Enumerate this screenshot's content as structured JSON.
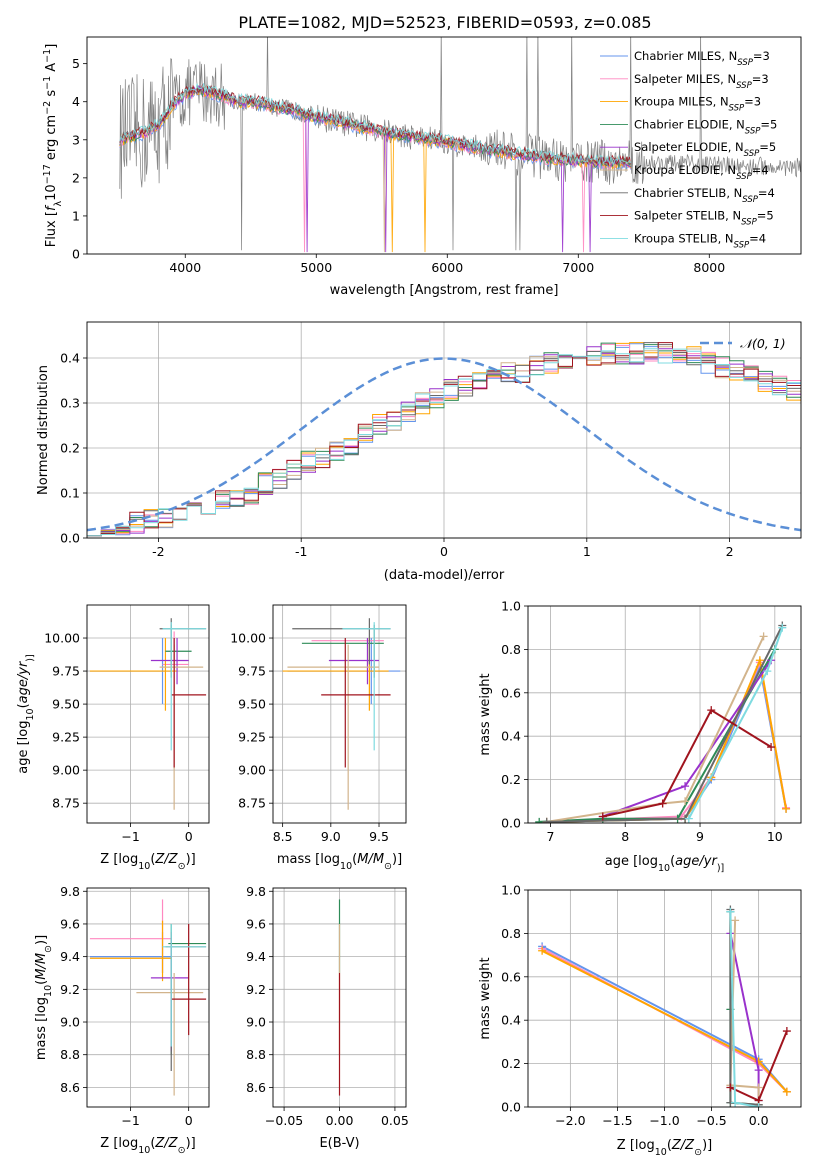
{
  "figure": {
    "title": "PLATE=1082, MJD=52523, FIBERID=0593, z=0.085"
  },
  "colors": {
    "data": "#808080",
    "models": [
      "#6495ed",
      "#ff88c0",
      "#ffa500",
      "#2e8b57",
      "#9932cc",
      "#d2b48c",
      "#696969",
      "#a0141e",
      "#7fdbe0"
    ],
    "fitline": "#1f1f1f",
    "gauss": "#5b8fd6"
  },
  "chart_data": [
    {
      "id": "spectrum",
      "type": "line",
      "xlabel": "wavelength [Angstrom, rest frame]",
      "ylabel_parts": [
        "Flux [",
        "f",
        "λ",
        "10",
        "−17",
        " erg cm",
        "−2",
        " s",
        "−1",
        " A",
        "−1",
        "]"
      ],
      "xlim": [
        3250,
        8700
      ],
      "ylim": [
        0,
        5.7
      ],
      "xticks": [
        4000,
        5000,
        6000,
        7000,
        8000
      ],
      "yticks": [
        0,
        1,
        2,
        3,
        4,
        5
      ],
      "grid": false,
      "legend_position": "top-right",
      "legend": [
        {
          "name": "Chabrier MILES",
          "nssp": "3"
        },
        {
          "name": "Salpeter MILES",
          "nssp": "3"
        },
        {
          "name": "Kroupa MILES",
          "nssp": "3"
        },
        {
          "name": "Chabrier ELODIE",
          "nssp": "5"
        },
        {
          "name": "Salpeter ELODIE",
          "nssp": "5"
        },
        {
          "name": "Kroupa ELODIE",
          "nssp": "4"
        },
        {
          "name": "Chabrier STELIB",
          "nssp": "4"
        },
        {
          "name": "Salpeter STELIB",
          "nssp": "5"
        },
        {
          "name": "Kroupa STELIB",
          "nssp": "4"
        }
      ],
      "nssp_label": "N",
      "nssp_sub": "SSP",
      "continuum": {
        "x": [
          3500,
          3600,
          3700,
          3800,
          3900,
          4000,
          4100,
          4200,
          4300,
          4400,
          4500,
          4600,
          4700,
          4800,
          4900,
          5000,
          5200,
          5400,
          5600,
          5800,
          6000,
          6200,
          6400,
          6600,
          6800,
          7000,
          7200,
          7400
        ],
        "y": [
          3.0,
          3.1,
          3.2,
          3.4,
          3.9,
          4.2,
          4.3,
          4.25,
          4.15,
          4.0,
          4.0,
          3.95,
          3.85,
          3.8,
          3.7,
          3.6,
          3.45,
          3.3,
          3.15,
          3.05,
          2.95,
          2.8,
          2.7,
          2.6,
          2.5,
          2.45,
          2.4,
          2.4
        ]
      }
    },
    {
      "id": "residuals",
      "type": "step",
      "xlabel": "(data-model)/error",
      "ylabel": "Normed distribution",
      "xlim": [
        -2.5,
        2.5
      ],
      "ylim": [
        0,
        0.48
      ],
      "xticks": [
        -2,
        -1,
        0,
        1,
        2
      ],
      "yticks": [
        0.0,
        0.1,
        0.2,
        0.3,
        0.4
      ],
      "ytick_labels": [
        "0.0",
        "0.1",
        "0.2",
        "0.3",
        "0.4"
      ],
      "grid": true,
      "legend_position": "top-right",
      "legend_label": "𝒩(0, 1)",
      "bin_width": 0.1,
      "bin_start": -2.5,
      "base_hist": [
        0.02,
        0.025,
        0.03,
        0.035,
        0.04,
        0.045,
        0.05,
        0.055,
        0.06,
        0.08,
        0.09,
        0.1,
        0.12,
        0.13,
        0.15,
        0.17,
        0.18,
        0.19,
        0.21,
        0.23,
        0.25,
        0.26,
        0.28,
        0.3,
        0.31,
        0.33,
        0.34,
        0.35,
        0.36,
        0.37,
        0.37,
        0.38,
        0.39,
        0.39,
        0.4,
        0.4,
        0.41,
        0.41,
        0.41,
        0.41,
        0.41,
        0.4,
        0.4,
        0.39,
        0.38,
        0.37,
        0.36,
        0.35,
        0.34,
        0.33,
        0.32,
        0.3,
        0.28,
        0.26,
        0.24,
        0.22,
        0.21,
        0.2,
        0.19,
        0.18,
        0.17,
        0.15,
        0.14,
        0.12,
        0.11,
        0.1,
        0.09,
        0.08,
        0.07,
        0.07,
        0.06,
        0.06,
        0.05,
        0.05,
        0.045,
        0.04,
        0.035,
        0.03,
        0.03,
        0.03,
        0.025,
        0.025,
        0.025,
        0.02,
        0.02,
        0.02,
        0.02,
        0.02,
        0.02,
        0.02,
        0.02,
        0.02,
        0.02,
        0.02,
        0.02,
        0.02,
        0.02,
        0.02,
        0.02,
        0.02
      ]
    },
    {
      "id": "age-vs-Z",
      "type": "errorbar",
      "xlabel_parts": [
        "Z [log",
        "10",
        "(",
        "Z/Z",
        "⊙",
        ")]"
      ],
      "ylabel_parts": [
        "age  [log",
        "10",
        "(",
        "age/yr",
        ")]"
      ],
      "xlim": [
        -1.75,
        0.35
      ],
      "ylim": [
        8.6,
        10.25
      ],
      "xticks": [
        -1,
        0
      ],
      "xtick_labels": [
        "−1",
        "0"
      ],
      "yticks": [
        8.75,
        9.0,
        9.25,
        9.5,
        9.75,
        10.0
      ],
      "ytick_labels": [
        "8.75",
        "9.00",
        "9.25",
        "9.50",
        "9.75",
        "10.00"
      ],
      "grid": true,
      "points": [
        {
          "x": -0.45,
          "xlo": -1.7,
          "xhi": -0.3,
          "y": 9.75,
          "ylo": 9.5,
          "yhi": 10.0
        },
        {
          "x": -0.25,
          "xlo": -0.45,
          "xhi": 0.0,
          "y": 9.8,
          "ylo": 9.6,
          "yhi": 10.05
        },
        {
          "x": -0.4,
          "xlo": -1.7,
          "xhi": -0.2,
          "y": 9.75,
          "ylo": 9.45,
          "yhi": 10.0
        },
        {
          "x": -0.3,
          "xlo": -0.4,
          "xhi": 0.05,
          "y": 9.9,
          "ylo": 9.7,
          "yhi": 10.1
        },
        {
          "x": -0.2,
          "xlo": -0.65,
          "xhi": 0.0,
          "y": 9.83,
          "ylo": 9.65,
          "yhi": 10.0
        },
        {
          "x": -0.25,
          "xlo": -0.5,
          "xhi": 0.25,
          "y": 9.78,
          "ylo": 8.7,
          "yhi": 9.95
        },
        {
          "x": -0.3,
          "xlo": -0.5,
          "xhi": 0.3,
          "y": 10.07,
          "ylo": 9.8,
          "yhi": 10.15
        },
        {
          "x": -0.25,
          "xlo": -0.3,
          "xhi": 0.3,
          "y": 9.57,
          "ylo": 9.02,
          "yhi": 10.0
        },
        {
          "x": -0.3,
          "xlo": -0.45,
          "xhi": 0.3,
          "y": 10.07,
          "ylo": 9.15,
          "yhi": 10.12
        }
      ]
    },
    {
      "id": "age-vs-mass",
      "type": "errorbar",
      "xlabel_parts": [
        "mass [log",
        "10",
        "(",
        "M/M",
        "⊙",
        ")]"
      ],
      "xlim": [
        8.4,
        9.78
      ],
      "ylim": [
        8.6,
        10.25
      ],
      "xticks": [
        8.5,
        9.0,
        9.5
      ],
      "xtick_labels": [
        "8.5",
        "9.0",
        "9.5"
      ],
      "yticks": [
        8.75,
        9.0,
        9.25,
        9.5,
        9.75,
        10.0
      ],
      "ytick_labels": [
        "8.75",
        "9.00",
        "9.25",
        "9.50",
        "9.75",
        "10.00"
      ],
      "grid": true,
      "points": [
        {
          "x": 9.42,
          "xlo": 8.55,
          "xhi": 9.72,
          "y": 9.75,
          "ylo": 9.5,
          "yhi": 10.0
        },
        {
          "x": 9.45,
          "xlo": 8.8,
          "xhi": 9.55,
          "y": 9.98,
          "ylo": 9.7,
          "yhi": 10.1
        },
        {
          "x": 9.4,
          "xlo": 8.5,
          "xhi": 9.6,
          "y": 9.75,
          "ylo": 9.45,
          "yhi": 10.0
        },
        {
          "x": 9.45,
          "xlo": 8.7,
          "xhi": 9.55,
          "y": 9.96,
          "ylo": 9.7,
          "yhi": 10.1
        },
        {
          "x": 9.38,
          "xlo": 8.98,
          "xhi": 9.5,
          "y": 9.83,
          "ylo": 9.65,
          "yhi": 10.0
        },
        {
          "x": 9.18,
          "xlo": 8.55,
          "xhi": 9.5,
          "y": 9.78,
          "ylo": 8.7,
          "yhi": 9.95
        },
        {
          "x": 9.4,
          "xlo": 8.6,
          "xhi": 9.62,
          "y": 10.07,
          "ylo": 9.8,
          "yhi": 10.15
        },
        {
          "x": 9.15,
          "xlo": 8.9,
          "xhi": 9.62,
          "y": 9.57,
          "ylo": 9.02,
          "yhi": 10.0
        },
        {
          "x": 9.45,
          "xlo": 9.12,
          "xhi": 9.62,
          "y": 10.07,
          "ylo": 9.15,
          "yhi": 10.12
        }
      ]
    },
    {
      "id": "massweight-vs-age",
      "type": "line",
      "xlabel_parts": [
        "age  [log",
        "10",
        "(",
        "age/yr",
        ")]"
      ],
      "ylabel": "mass weight",
      "xlim": [
        6.7,
        10.35
      ],
      "ylim": [
        0,
        1.0
      ],
      "xticks": [
        7,
        8,
        9,
        10
      ],
      "yticks": [
        0.0,
        0.2,
        0.4,
        0.6,
        0.8,
        1.0
      ],
      "ytick_labels": [
        "0.0",
        "0.2",
        "0.4",
        "0.6",
        "0.8",
        "1.0"
      ],
      "grid": true,
      "series": [
        {
          "x": [
            6.95,
            8.8,
            9.15,
            9.8,
            10.15
          ],
          "y": [
            0.005,
            0.02,
            0.2,
            0.72,
            0.065
          ]
        },
        {
          "x": [
            6.95,
            8.75,
            9.15,
            9.8,
            10.15
          ],
          "y": [
            0.005,
            0.03,
            0.21,
            0.74,
            0.07
          ]
        },
        {
          "x": [
            6.95,
            8.8,
            9.15,
            9.8,
            10.15
          ],
          "y": [
            0.005,
            0.02,
            0.21,
            0.75,
            0.065
          ]
        },
        {
          "x": [
            6.85,
            7.7,
            8.7,
            10.0
          ],
          "y": [
            0.005,
            0.02,
            0.02,
            0.8
          ]
        },
        {
          "x": [
            7.7,
            8.8,
            9.95
          ],
          "y": [
            0.03,
            0.17,
            0.75
          ]
        },
        {
          "x": [
            6.95,
            8.5,
            8.8,
            9.85
          ],
          "y": [
            0.005,
            0.09,
            0.1,
            0.86
          ]
        },
        {
          "x": [
            6.95,
            8.8,
            10.1
          ],
          "y": [
            0.005,
            0.02,
            0.91
          ]
        },
        {
          "x": [
            7.7,
            8.5,
            9.15,
            9.95
          ],
          "y": [
            0.03,
            0.09,
            0.52,
            0.35
          ]
        },
        {
          "x": [
            8.85,
            9.9,
            10.1
          ],
          "y": [
            0.02,
            0.7,
            0.9
          ]
        }
      ]
    },
    {
      "id": "mass-vs-Z",
      "type": "errorbar",
      "xlabel_parts": [
        "Z [log",
        "10",
        "(",
        "Z/Z",
        "⊙",
        ")]"
      ],
      "ylabel_parts": [
        "mass [log",
        "10",
        "(",
        "M/M",
        "⊙",
        ")]"
      ],
      "xlim": [
        -1.75,
        0.35
      ],
      "ylim": [
        8.48,
        9.82
      ],
      "xticks": [
        -1,
        0
      ],
      "xtick_labels": [
        "−1",
        "0"
      ],
      "yticks": [
        8.6,
        8.8,
        9.0,
        9.2,
        9.4,
        9.6,
        9.8
      ],
      "ytick_labels": [
        "8.6",
        "8.8",
        "9.0",
        "9.2",
        "9.4",
        "9.6",
        "9.8"
      ],
      "grid": true,
      "points": [
        {
          "x": -0.45,
          "xlo": -1.7,
          "xhi": -0.3,
          "y": 9.4,
          "ylo": 9.3,
          "yhi": 9.55
        },
        {
          "x": -0.45,
          "xlo": -1.7,
          "xhi": -0.3,
          "y": 9.51,
          "ylo": 9.3,
          "yhi": 9.75
        },
        {
          "x": -0.45,
          "xlo": -1.7,
          "xhi": -0.3,
          "y": 9.39,
          "ylo": 9.25,
          "yhi": 9.62
        },
        {
          "x": -0.3,
          "xlo": -0.35,
          "xhi": 0.3,
          "y": 9.48,
          "ylo": 8.8,
          "yhi": 9.6
        },
        {
          "x": -0.3,
          "xlo": -0.65,
          "xhi": 0.0,
          "y": 9.27,
          "ylo": 8.82,
          "yhi": 9.5
        },
        {
          "x": -0.25,
          "xlo": -0.9,
          "xhi": 0.25,
          "y": 9.18,
          "ylo": 8.55,
          "yhi": 9.3
        },
        {
          "x": -0.3,
          "xlo": -0.4,
          "xhi": 0.3,
          "y": 9.46,
          "ylo": 8.7,
          "yhi": 9.55
        },
        {
          "x": 0.0,
          "xlo": -0.3,
          "xhi": 0.3,
          "y": 9.14,
          "ylo": 8.92,
          "yhi": 9.6
        },
        {
          "x": -0.3,
          "xlo": -0.45,
          "xhi": 0.3,
          "y": 9.46,
          "ylo": 8.85,
          "yhi": 9.6
        }
      ]
    },
    {
      "id": "mass-vs-EBV",
      "type": "errorbar",
      "xlabel": "E(B-V)",
      "xlim": [
        -0.06,
        0.06
      ],
      "ylim": [
        8.48,
        9.82
      ],
      "xticks": [
        -0.05,
        0.0,
        0.05
      ],
      "xtick_labels": [
        "−0.05",
        "0.00",
        "0.05"
      ],
      "yticks": [
        8.6,
        8.8,
        9.0,
        9.2,
        9.4,
        9.6,
        9.8
      ],
      "ytick_labels": [
        "8.6",
        "8.8",
        "9.0",
        "9.2",
        "9.4",
        "9.6",
        "9.8"
      ],
      "grid": true,
      "points": [
        {
          "x": 0.0,
          "ylo": 9.3,
          "yhi": 9.75
        },
        {
          "x": 0.0,
          "ylo": 8.8,
          "yhi": 9.6
        },
        {
          "x": 0.0,
          "ylo": 8.55,
          "yhi": 9.3
        }
      ]
    },
    {
      "id": "massweight-vs-Z",
      "type": "line",
      "xlabel_parts": [
        "Z [log",
        "10",
        "(",
        "Z/Z",
        "⊙",
        ")]"
      ],
      "ylabel": "mass weight",
      "xlim": [
        -2.45,
        0.45
      ],
      "ylim": [
        0,
        1.0
      ],
      "xticks": [
        -2.0,
        -1.5,
        -1.0,
        -0.5,
        0.0
      ],
      "xtick_labels": [
        "−2.0",
        "−1.5",
        "−1.0",
        "−0.5",
        "0.0"
      ],
      "yticks": [
        0.0,
        0.2,
        0.4,
        0.6,
        0.8,
        1.0
      ],
      "ytick_labels": [
        "0.0",
        "0.2",
        "0.4",
        "0.6",
        "0.8",
        "1.0"
      ],
      "grid": true,
      "series": [
        {
          "x": [
            -2.3,
            0.0,
            0.3
          ],
          "y": [
            0.74,
            0.22,
            0.07
          ]
        },
        {
          "x": [
            -2.3,
            0.0,
            0.3
          ],
          "y": [
            0.73,
            0.2,
            0.07
          ]
        },
        {
          "x": [
            -2.3,
            0.0,
            0.3
          ],
          "y": [
            0.72,
            0.21,
            0.07
          ]
        },
        {
          "x": [
            -0.3,
            -0.3,
            -0.3,
            0.0
          ],
          "y": [
            0.9,
            0.45,
            0.02,
            0.01
          ]
        },
        {
          "x": [
            -0.3,
            0.0,
            0.0
          ],
          "y": [
            0.8,
            0.17,
            0.03
          ]
        },
        {
          "x": [
            -0.25,
            -0.3,
            0.0,
            0.0
          ],
          "y": [
            0.86,
            0.1,
            0.09,
            0.01
          ]
        },
        {
          "x": [
            -0.3,
            -0.3,
            0.0
          ],
          "y": [
            0.91,
            0.02,
            0.01
          ]
        },
        {
          "x": [
            -0.3,
            0.0,
            0.3
          ],
          "y": [
            0.09,
            0.03,
            0.35
          ]
        },
        {
          "x": [
            -0.3,
            -0.25,
            0.0
          ],
          "y": [
            0.9,
            0.02,
            0.0
          ]
        }
      ]
    }
  ]
}
